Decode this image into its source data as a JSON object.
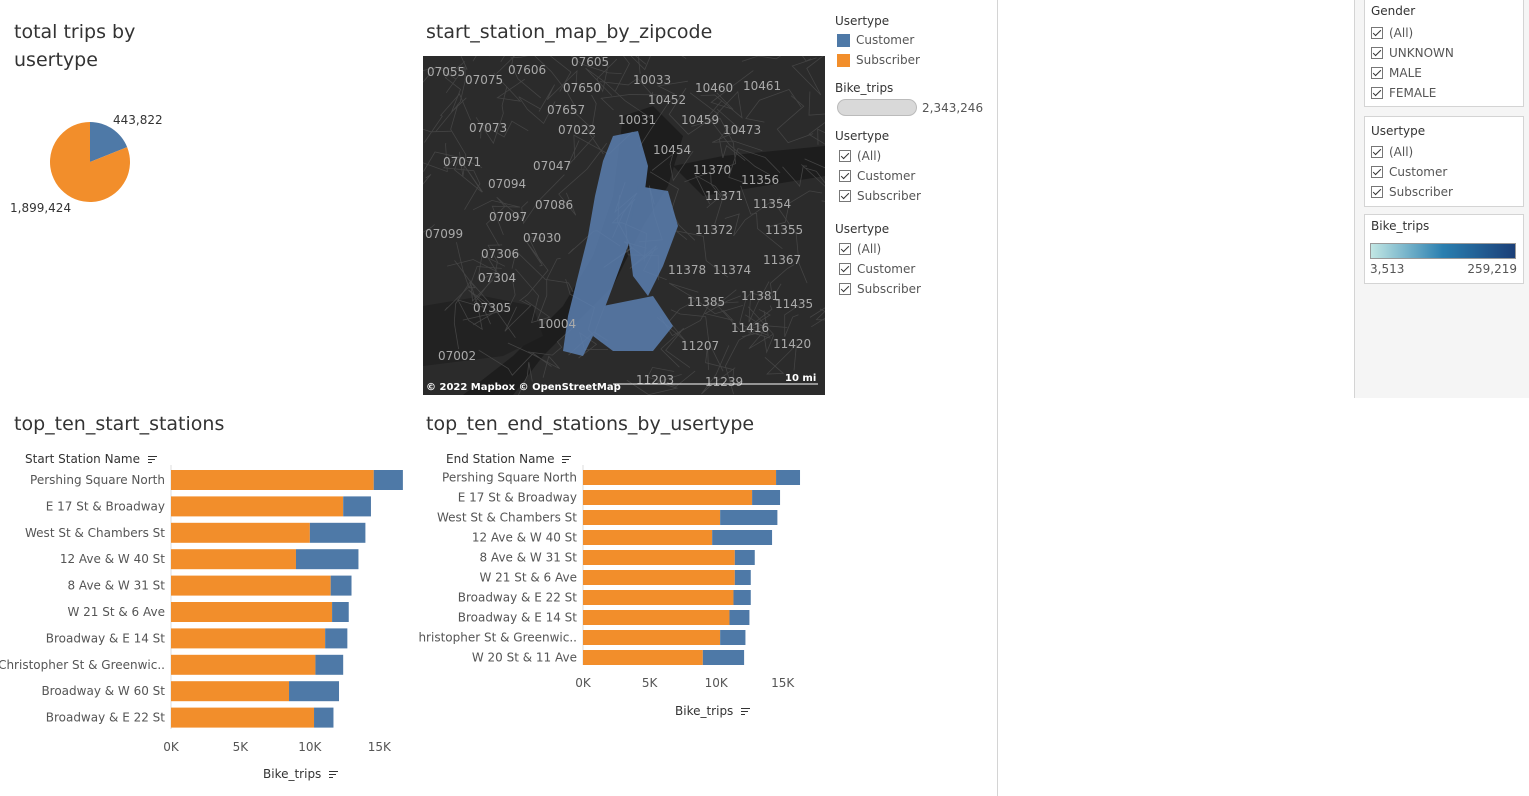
{
  "colors": {
    "customer": "#4e79a7",
    "subscriber": "#f28e2b",
    "map_bg": "#2b2b2b"
  },
  "pie": {
    "title_line1": "total trips by",
    "title_line2": "usertype",
    "customer_label": "443,822",
    "subscriber_label": "1,899,424",
    "customer_value": 443822,
    "subscriber_value": 1899424
  },
  "map": {
    "title": "start_station_map_by_zipcode",
    "attribution": "© 2022 Mapbox  © OpenStreetMap",
    "scale": "10 mi",
    "zipcodes": [
      "07055",
      "07075",
      "07606",
      "07605",
      "10033",
      "10460",
      "10461",
      "07650",
      "10452",
      "07657",
      "10031",
      "10459",
      "10473",
      "07073",
      "07022",
      "10454",
      "07071",
      "07047",
      "11370",
      "11356",
      "07094",
      "11371",
      "07086",
      "11354",
      "07097",
      "07030",
      "11355",
      "11372",
      "07099",
      "07306",
      "11374",
      "11378",
      "11367",
      "07304",
      "11381",
      "11385",
      "11435",
      "07305",
      "10004",
      "11416",
      "07002",
      "11207",
      "11420",
      "11203",
      "11239"
    ]
  },
  "map_legend": {
    "usertype_title": "Usertype",
    "customer": "Customer",
    "subscriber": "Subscriber",
    "bike_trips_title": "Bike_trips",
    "bike_trips_value": "2,343,246",
    "filter1_title": "Usertype",
    "filter1_items": [
      "(All)",
      "Customer",
      "Subscriber"
    ],
    "filter2_title": "Usertype",
    "filter2_items": [
      "(All)",
      "Customer",
      "Subscriber"
    ]
  },
  "side": {
    "gender_title": "Gender",
    "gender_items": [
      "(All)",
      "UNKNOWN",
      "MALE",
      "FEMALE"
    ],
    "usertype_title": "Usertype",
    "usertype_items": [
      "(All)",
      "Customer",
      "Subscriber"
    ],
    "bike_trips_title": "Bike_trips",
    "min": "3,513",
    "max": "259,219"
  },
  "start_chart": {
    "title": "top_ten_start_stations",
    "dim_label": "Start Station Name",
    "measure_label": "Bike_trips",
    "ticks": [
      "0K",
      "5K",
      "10K",
      "15K"
    ]
  },
  "end_chart": {
    "title": "top_ten_end_stations_by_usertype",
    "dim_label": "End Station Name",
    "measure_label": "Bike_trips",
    "ticks": [
      "0K",
      "5K",
      "10K",
      "15K"
    ]
  },
  "chart_data": [
    {
      "type": "pie",
      "title": "total trips by usertype",
      "categories": [
        "Customer",
        "Subscriber"
      ],
      "values": [
        443822,
        1899424
      ]
    },
    {
      "type": "bar",
      "orientation": "horizontal",
      "stacked": true,
      "title": "top_ten_start_stations",
      "ylabel": "Start Station Name",
      "xlabel": "Bike_trips",
      "xlim": [
        0,
        17500
      ],
      "categories": [
        "Pershing Square North",
        "E 17 St & Broadway",
        "West St & Chambers St",
        "12 Ave & W 40 St",
        "8 Ave & W 31 St",
        "W 21 St & 6 Ave",
        "Broadway & E 14 St",
        "Christopher St & Greenwic..",
        "Broadway & W 60 St",
        "Broadway & E 22 St"
      ],
      "series": [
        {
          "name": "Subscriber",
          "values": [
            14600,
            12400,
            10000,
            9000,
            11500,
            11600,
            11100,
            10400,
            8500,
            10300
          ]
        },
        {
          "name": "Customer",
          "values": [
            2100,
            2000,
            4000,
            4500,
            1500,
            1200,
            1600,
            2000,
            3600,
            1400
          ]
        }
      ]
    },
    {
      "type": "bar",
      "orientation": "horizontal",
      "stacked": true,
      "title": "top_ten_end_stations_by_usertype",
      "ylabel": "End Station Name",
      "xlabel": "Bike_trips",
      "xlim": [
        0,
        17500
      ],
      "categories": [
        "Pershing Square North",
        "E 17 St & Broadway",
        "West St & Chambers St",
        "12 Ave & W 40 St",
        "8 Ave & W 31 St",
        "W 21 St & 6 Ave",
        "Broadway & E 22 St",
        "Broadway & E 14 St",
        "Christopher St & Greenwic..",
        "W 20 St & 11 Ave"
      ],
      "series": [
        {
          "name": "Subscriber",
          "values": [
            14500,
            12700,
            10300,
            9700,
            11400,
            11400,
            11300,
            11000,
            10300,
            9000
          ]
        },
        {
          "name": "Customer",
          "values": [
            1800,
            2100,
            4300,
            4500,
            1500,
            1200,
            1300,
            1500,
            1900,
            3100
          ]
        }
      ]
    }
  ]
}
